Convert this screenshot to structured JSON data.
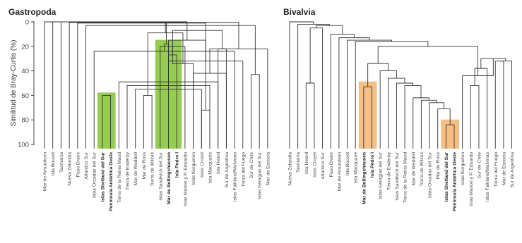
{
  "colors": {
    "gastropoda_highlight": "#8cc63f",
    "bivalvia_highlight": "#f5b877",
    "line": "#333333"
  },
  "y_axis": {
    "label": "Similitud de Bray-Curtis (%)",
    "ticks": [
      "0",
      "20",
      "40",
      "60",
      "80",
      "100"
    ],
    "range": [
      0,
      100
    ]
  },
  "panels": [
    {
      "title": "Gastropoda",
      "leaves": [
        {
          "label": "Mar de Amundsen"
        },
        {
          "label": "Isla Bouvet"
        },
        {
          "label": "Tasmania"
        },
        {
          "label": "Nueva Zelandia"
        },
        {
          "label": "Paso Drake"
        },
        {
          "label": "Atlántico Sur"
        },
        {
          "label": "Islas Orcadas del Sur"
        },
        {
          "label": "Islas Shetland del Sur",
          "bold": true
        },
        {
          "label": "Península Antártica Oeste",
          "bold": true
        },
        {
          "label": "Tierra de la Reina Maud"
        },
        {
          "label": "Tierra de Enderby"
        },
        {
          "label": "Mar de Weddell"
        },
        {
          "label": "Mar de Ross"
        },
        {
          "label": "Tierra de Wilkes"
        },
        {
          "label": "Islas Sandwich del Sur"
        },
        {
          "label": "Mar de Bellingshausen",
          "bold": true
        },
        {
          "label": "Isla Pedro I",
          "bold": true
        },
        {
          "label": "Islas Marion y P. Eduardo"
        },
        {
          "label": "Islas Kerguelen"
        },
        {
          "label": "Islas Crozet"
        },
        {
          "label": "Isla Macquarie"
        },
        {
          "label": "Isla Heard"
        },
        {
          "label": "Sur de Argentina"
        },
        {
          "label": "Islas Falkland/Malvinas"
        },
        {
          "label": "Tierra del Fuego"
        },
        {
          "label": "Sur de Chile"
        },
        {
          "label": "Islas Georgias del Sur"
        },
        {
          "label": "Mar de Escocia"
        }
      ]
    },
    {
      "title": "Bivalvia",
      "leaves": [
        {
          "label": "Nueva Zelandia"
        },
        {
          "label": "Tasmania"
        },
        {
          "label": "Isla Heard"
        },
        {
          "label": "Islas Crozet"
        },
        {
          "label": "Atlántico Sur"
        },
        {
          "label": "Paso Drake"
        },
        {
          "label": "Mar de Amundsen"
        },
        {
          "label": "Isla Bouvet"
        },
        {
          "label": "Isla Macquarie"
        },
        {
          "label": "Mar de Bellingshausen",
          "bold": true
        },
        {
          "label": "Isla Pedro I",
          "bold": true
        },
        {
          "label": "Islas Georgias del Sur"
        },
        {
          "label": "Tierra de Enderby"
        },
        {
          "label": "Islas Sandwich del Sur"
        },
        {
          "label": "Tierra de la Reina Maud"
        },
        {
          "label": "Mar de Weddell"
        },
        {
          "label": "Tierra de Wilkes"
        },
        {
          "label": "Islas Orcadas del Sur"
        },
        {
          "label": "Mar de Ross"
        },
        {
          "label": "Islas Shetland del Sur",
          "bold": true
        },
        {
          "label": "Península Antártica Oeste",
          "bold": true
        },
        {
          "label": "Islas Kerguelen"
        },
        {
          "label": "Islas Marion y P. Eduardo"
        },
        {
          "label": "Sur de Chile"
        },
        {
          "label": "Islas Falkland/Malvinas"
        },
        {
          "label": "Tierra del Fuego"
        },
        {
          "label": "Mar de Escocia"
        },
        {
          "label": "Sur de Argentina"
        }
      ]
    }
  ]
}
